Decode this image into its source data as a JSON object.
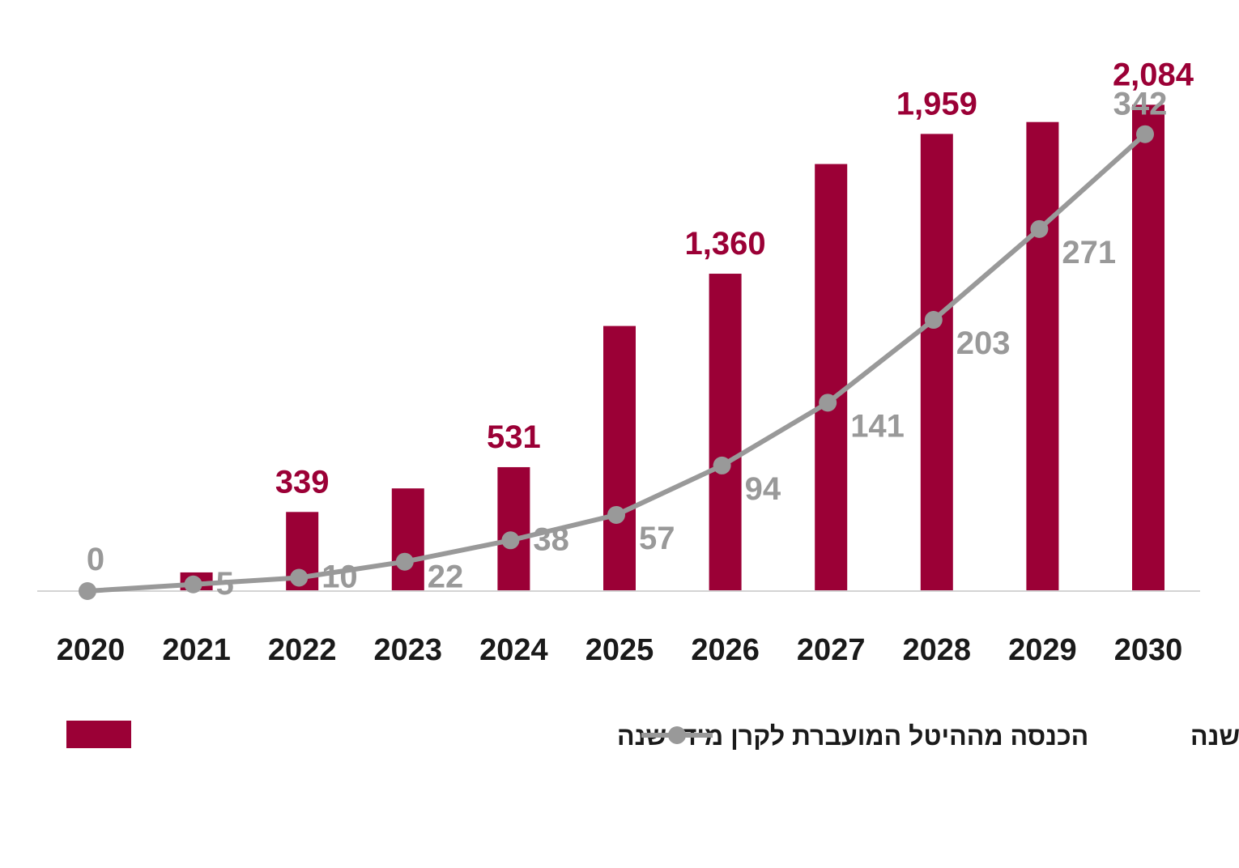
{
  "chart_data": {
    "type": "bar",
    "categories": [
      "2020",
      "2021",
      "2022",
      "2023",
      "2024",
      "2025",
      "2026",
      "2027",
      "2028",
      "2029",
      "2030"
    ],
    "series": [
      {
        "name": "הכנסה מההיטל המועברת לקרן מידי שנה",
        "kind": "bar",
        "values": [
          0,
          80,
          339,
          440,
          531,
          1136,
          1360,
          1830,
          1959,
          2010,
          2084
        ],
        "labels": [
          "",
          "",
          "339",
          "",
          "531",
          "",
          "1,360",
          "",
          "1,959",
          "",
          "2,084"
        ],
        "color": "#9b0036"
      },
      {
        "name": "סכום המועבר לתקציב המדינה מידי שנה",
        "kind": "line",
        "values": [
          0,
          5,
          10,
          22,
          38,
          57,
          94,
          141,
          203,
          271,
          342
        ],
        "labels": [
          "0",
          "5",
          "10",
          "22",
          "38",
          "57",
          "94",
          "141",
          "203",
          "271",
          "342"
        ],
        "color": "#999999"
      }
    ],
    "bar_ylim": [
      0,
      2290
    ],
    "line_ylim": [
      0,
      400
    ],
    "title": "",
    "xlabel": "",
    "ylabel": "",
    "grid": false,
    "legend_position": "bottom"
  }
}
